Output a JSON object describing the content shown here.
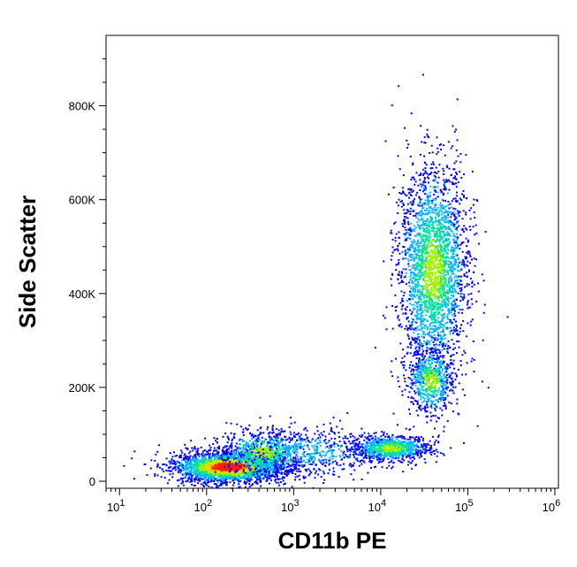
{
  "chart_data": {
    "type": "scatter",
    "subtype": "flow-cytometry-density-dot-plot",
    "title": "",
    "xlabel": "CD11b PE",
    "ylabel": "Side Scatter",
    "x_scale": "log",
    "xlim": [
      7,
      1100000
    ],
    "ylim": [
      -15000,
      950000
    ],
    "x_ticks": [
      {
        "value": 10,
        "base": "10",
        "exp": "1"
      },
      {
        "value": 100,
        "base": "10",
        "exp": "2"
      },
      {
        "value": 1000,
        "base": "10",
        "exp": "3"
      },
      {
        "value": 10000,
        "base": "10",
        "exp": "4"
      },
      {
        "value": 100000,
        "base": "10",
        "exp": "5"
      },
      {
        "value": 1000000,
        "base": "10",
        "exp": "6"
      }
    ],
    "y_ticks": [
      {
        "value": 0,
        "label": "0"
      },
      {
        "value": 200000,
        "label": "200K"
      },
      {
        "value": 400000,
        "label": "400K"
      },
      {
        "value": 600000,
        "label": "600K"
      },
      {
        "value": 800000,
        "label": "800K"
      }
    ],
    "grid": false,
    "color_scale": [
      "#0000ff",
      "#00b4ff",
      "#00e0a0",
      "#a0f000",
      "#ffd000",
      "#ff2000"
    ],
    "populations": [
      {
        "center_x": 180,
        "center_y": 30000,
        "spread_log_x": 0.32,
        "spread_y": 16000,
        "count": 2600,
        "density": "high"
      },
      {
        "center_x": 450,
        "center_y": 60000,
        "spread_log_x": 0.25,
        "spread_y": 22000,
        "count": 700,
        "density": "medium"
      },
      {
        "center_x": 13000,
        "center_y": 70000,
        "spread_log_x": 0.22,
        "spread_y": 14000,
        "count": 900,
        "density": "medium"
      },
      {
        "center_x": 40000,
        "center_y": 450000,
        "spread_log_x": 0.2,
        "spread_y": 110000,
        "count": 2600,
        "density": "medium"
      },
      {
        "center_x": 38000,
        "center_y": 215000,
        "spread_log_x": 0.13,
        "spread_y": 35000,
        "count": 600,
        "density": "medium"
      },
      {
        "center_x": 1500,
        "center_y": 60000,
        "spread_log_x": 0.45,
        "spread_y": 30000,
        "count": 500,
        "density": "low"
      }
    ]
  }
}
